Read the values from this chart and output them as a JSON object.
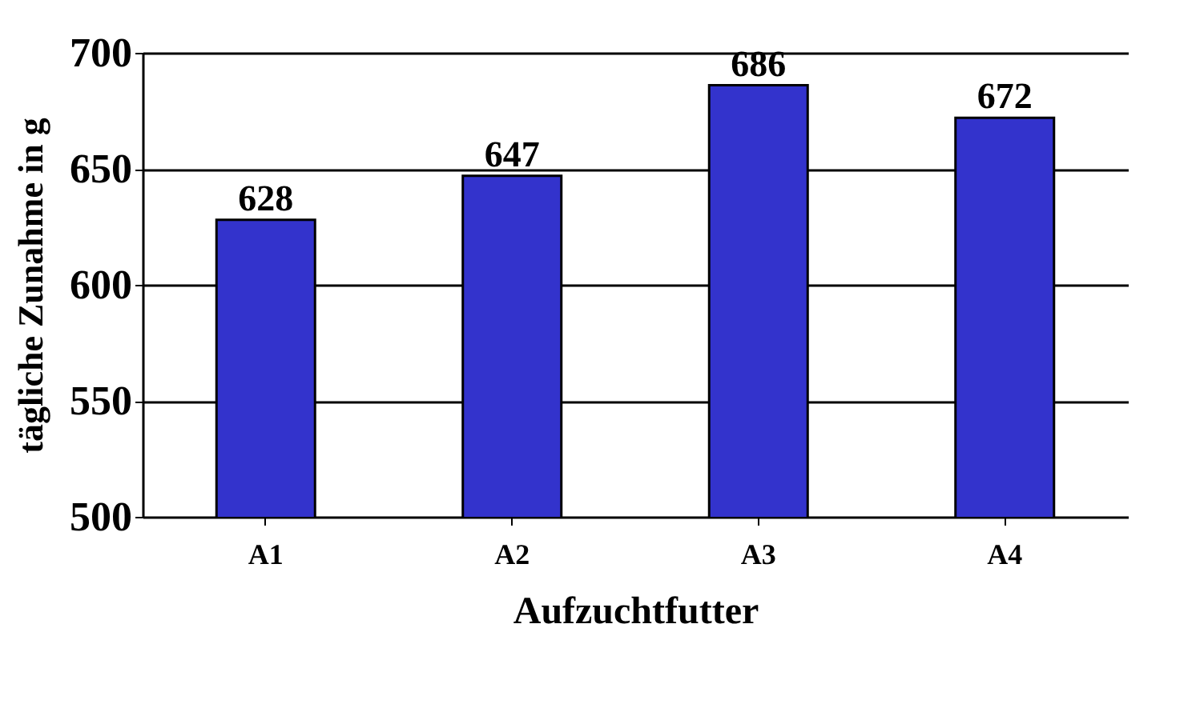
{
  "chart_data": {
    "type": "bar",
    "xlabel": "Aufzuchtfutter",
    "ylabel": "tägliche Zunahme in g",
    "categories": [
      "A1",
      "A2",
      "A3",
      "A4"
    ],
    "values": [
      628,
      647,
      686,
      672
    ],
    "color": "#3333cc",
    "ylim": [
      500,
      700
    ],
    "yticks": [
      500,
      550,
      600,
      650,
      700
    ],
    "grid": "y",
    "data_labels": true
  }
}
